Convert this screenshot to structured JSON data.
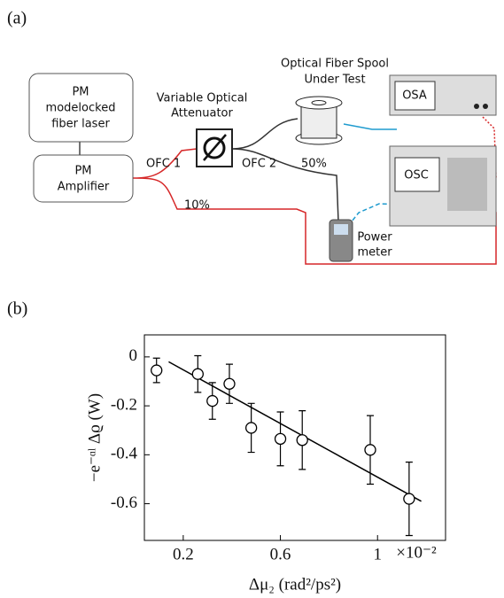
{
  "diagram": {
    "label": "(a)",
    "laser": [
      "PM",
      "modelocked",
      "fiber laser"
    ],
    "amplifier": [
      "PM",
      "Amplifier"
    ],
    "attenuator": [
      "Variable Optical",
      "Attenuator"
    ],
    "spool": [
      "Optical Fiber Spool",
      "Under Test"
    ],
    "osa": "OSA",
    "osc": "OSC",
    "power_meter": [
      "Power",
      "meter"
    ],
    "ofc1": "OFC 1",
    "ofc2": "OFC 2",
    "split50": "50%",
    "split10": "10%"
  },
  "chart_data": {
    "type": "scatter",
    "panel_label": "(b)",
    "x_label": "Δμ₂ (rad²/ps²)",
    "y_label": "−e⁻ᵅˡ Δϱ (W)",
    "x_multiplier": "×10⁻²",
    "x": [
      0.09,
      0.26,
      0.32,
      0.39,
      0.48,
      0.6,
      0.69,
      0.97,
      1.13
    ],
    "values": [
      -0.055,
      -0.07,
      -0.18,
      -0.11,
      -0.29,
      -0.335,
      -0.34,
      -0.38,
      -0.58
    ],
    "errors": [
      0.05,
      0.075,
      0.075,
      0.08,
      0.1,
      0.11,
      0.12,
      0.14,
      0.15
    ],
    "fit": {
      "x": [
        0.14,
        1.18
      ],
      "values": [
        -0.02,
        -0.59
      ]
    },
    "color": "#000000",
    "xlim": [
      0.04,
      1.28
    ],
    "ylim": [
      -0.75,
      0.09
    ],
    "xticks": [
      0.2,
      0.6,
      1
    ],
    "yticks": [
      0,
      -0.2,
      -0.4,
      -0.6
    ]
  }
}
